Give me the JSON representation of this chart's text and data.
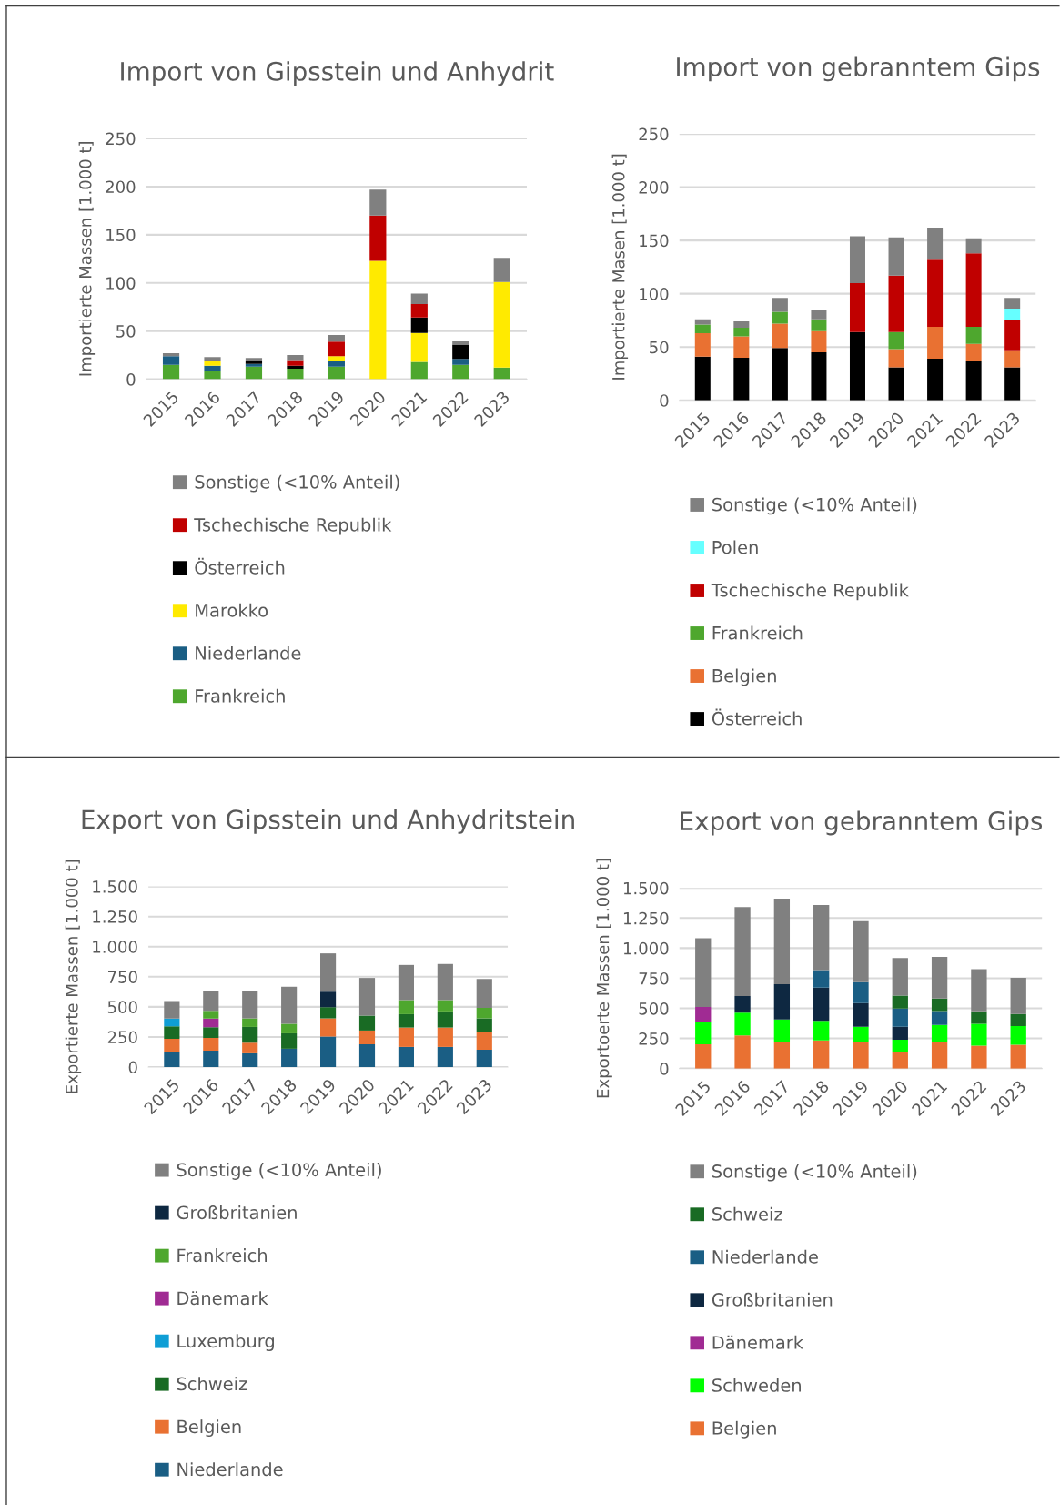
{
  "chart_data": [
    {
      "type": "bar",
      "stacked": true,
      "title": "Import von Gipsstein und Anhydrit",
      "ylabel": "Importierte Massen [1.000 t]",
      "categories": [
        "2015",
        "2016",
        "2017",
        "2018",
        "2019",
        "2020",
        "2021",
        "2022",
        "2023"
      ],
      "ylim": [
        0,
        250
      ],
      "yticks": [
        0,
        50,
        100,
        150,
        200,
        250
      ],
      "grid": "y",
      "legend": "bottom",
      "series": [
        {
          "name": "Frankreich",
          "color": "#4ea72e",
          "values": [
            15,
            9,
            13,
            11,
            13,
            null,
            18,
            15,
            12
          ]
        },
        {
          "name": "Niederlande",
          "color": "#1a5e84",
          "values": [
            9,
            5,
            3,
            null,
            6,
            null,
            null,
            6,
            null
          ]
        },
        {
          "name": "Marokko",
          "color": "#ffea00",
          "values": [
            null,
            5,
            null,
            null,
            5,
            123,
            30,
            null,
            89
          ]
        },
        {
          "name": "Österreich",
          "color": "#000000",
          "values": [
            null,
            null,
            3,
            3,
            null,
            null,
            16,
            15,
            null
          ]
        },
        {
          "name": "Tschechische Republik",
          "color": "#c00000",
          "values": [
            null,
            null,
            null,
            6,
            15,
            47,
            14,
            null,
            null
          ]
        },
        {
          "name": "Sonstige (<10% Anteil)",
          "color": "#808080",
          "values": [
            3,
            4,
            3,
            5,
            7,
            27,
            11,
            4,
            25
          ]
        }
      ]
    },
    {
      "type": "bar",
      "stacked": true,
      "title": "Import von gebranntem Gips",
      "ylabel": "Importierte Masen [1.000 t]",
      "categories": [
        "2015",
        "2016",
        "2017",
        "2018",
        "2019",
        "2020",
        "2021",
        "2022",
        "2023"
      ],
      "ylim": [
        0,
        250
      ],
      "yticks": [
        0,
        50,
        100,
        150,
        200,
        250
      ],
      "grid": "y",
      "legend": "bottom",
      "series": [
        {
          "name": "Österreich",
          "color": "#000000",
          "values": [
            41,
            40,
            49,
            45,
            64,
            31,
            39,
            37,
            31
          ]
        },
        {
          "name": "Belgien",
          "color": "#e97132",
          "values": [
            22,
            20,
            23,
            20,
            null,
            17,
            30,
            16,
            16
          ]
        },
        {
          "name": "Frankreich",
          "color": "#4ea72e",
          "values": [
            8,
            8,
            11,
            11,
            null,
            16,
            null,
            16,
            null
          ]
        },
        {
          "name": "Tschechische Republik",
          "color": "#c00000",
          "values": [
            null,
            null,
            null,
            null,
            46,
            53,
            63,
            69,
            28
          ]
        },
        {
          "name": "Polen",
          "color": "#66ffff",
          "values": [
            null,
            null,
            null,
            null,
            null,
            null,
            null,
            null,
            11
          ]
        },
        {
          "name": "Sonstige (<10% Anteil)",
          "color": "#808080",
          "values": [
            5,
            6,
            13,
            9,
            44,
            36,
            30,
            14,
            10
          ]
        }
      ]
    },
    {
      "type": "bar",
      "stacked": true,
      "title": "Export von Gipsstein und Anhydritstein",
      "ylabel": "Exportierte Massen [1.000 t]",
      "categories": [
        "2015",
        "2016",
        "2017",
        "2018",
        "2019",
        "2020",
        "2021",
        "2022",
        "2023"
      ],
      "ylim": [
        0,
        1500
      ],
      "yticks": [
        0,
        {
          "value": 250,
          "label": "250"
        },
        {
          "value": 500,
          "label": "500"
        },
        {
          "value": 750,
          "label": "750"
        },
        {
          "value": 1000,
          "label": "1.000"
        },
        {
          "value": 1250,
          "label": "1.250"
        },
        {
          "value": 1500,
          "label": "1.500"
        }
      ],
      "grid": "y",
      "legend": "bottom",
      "series": [
        {
          "name": "Niederlande",
          "color": "#1a5e84",
          "values": [
            129,
            136,
            114,
            152,
            253,
            189,
            167,
            167,
            144
          ]
        },
        {
          "name": "Belgien",
          "color": "#e97132",
          "values": [
            106,
            106,
            88,
            null,
            151,
            114,
            161,
            161,
            151
          ]
        },
        {
          "name": "Schweiz",
          "color": "#196b24",
          "values": [
            103,
            89,
            131,
            128,
            93,
            124,
            111,
            134,
            109
          ]
        },
        {
          "name": "Luxemburg",
          "color": "#0f9ed5",
          "values": [
            64,
            null,
            null,
            null,
            null,
            null,
            null,
            null,
            null
          ]
        },
        {
          "name": "Dänemark",
          "color": "#a02b93",
          "values": [
            null,
            71,
            null,
            null,
            null,
            null,
            null,
            null,
            null
          ]
        },
        {
          "name": "Frankreich",
          "color": "#4ea72e",
          "values": [
            null,
            65,
            71,
            79,
            null,
            null,
            117,
            94,
            88
          ]
        },
        {
          "name": "Großbritanien",
          "color": "#0e2841",
          "values": [
            null,
            null,
            null,
            null,
            129,
            null,
            null,
            null,
            null
          ]
        },
        {
          "name": "Sonstige (<10% Anteil)",
          "color": "#808080",
          "values": [
            146,
            167,
            227,
            308,
            318,
            313,
            292,
            300,
            240
          ]
        }
      ]
    },
    {
      "type": "bar",
      "stacked": true,
      "title": "Export von gebranntem Gips",
      "ylabel": "Exportoerte Massen [1.000 t]",
      "categories": [
        "2015",
        "2016",
        "2017",
        "2018",
        "2019",
        "2020",
        "2021",
        "2022",
        "2023"
      ],
      "ylim": [
        0,
        1500
      ],
      "yticks": [
        0,
        {
          "value": 250,
          "label": "250"
        },
        {
          "value": 500,
          "label": "500"
        },
        {
          "value": 750,
          "label": "750"
        },
        {
          "value": 1000,
          "label": "1.000"
        },
        {
          "value": 1250,
          "label": "1.250"
        },
        {
          "value": 1500,
          "label": "1.500"
        }
      ],
      "grid": "y",
      "legend": "bottom",
      "series": [
        {
          "name": "Belgien",
          "color": "#e97132",
          "values": [
            202,
            276,
            225,
            233,
            220,
            134,
            220,
            190,
            197
          ]
        },
        {
          "name": "Schweden",
          "color": "#00ff00",
          "values": [
            180,
            189,
            182,
            164,
            127,
            106,
            142,
            182,
            155
          ]
        },
        {
          "name": "Dänemark",
          "color": "#a02b93",
          "values": [
            129,
            null,
            null,
            null,
            null,
            null,
            null,
            null,
            null
          ]
        },
        {
          "name": "Großbritanien",
          "color": "#0e2841",
          "values": [
            null,
            137,
            294,
            276,
            197,
            107,
            null,
            null,
            null
          ]
        },
        {
          "name": "Niederlande",
          "color": "#1a5e84",
          "values": [
            null,
            null,
            null,
            144,
            174,
            151,
            116,
            null,
            null
          ]
        },
        {
          "name": "Schweiz",
          "color": "#196b24",
          "values": [
            null,
            null,
            null,
            null,
            null,
            107,
            104,
            104,
            101
          ]
        },
        {
          "name": "Sonstige (<10% Anteil)",
          "color": "#808080",
          "values": [
            572,
            739,
            711,
            541,
            506,
            313,
            346,
            349,
            301
          ]
        }
      ]
    }
  ]
}
